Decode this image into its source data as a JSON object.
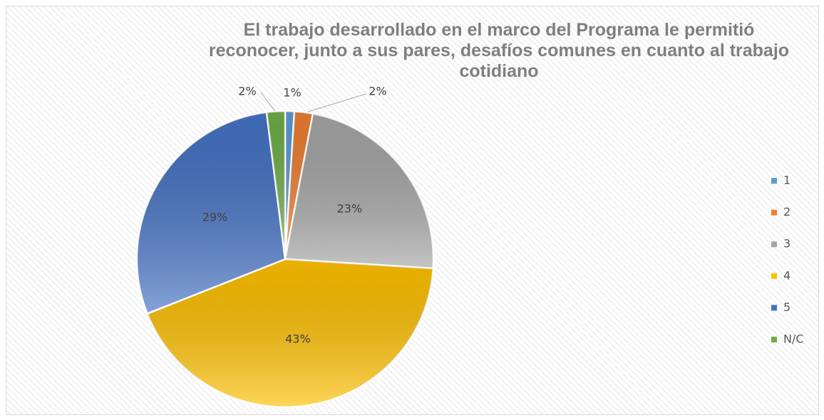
{
  "chart_data": {
    "type": "pie",
    "title": "El trabajo desarrollado en el marco del Programa le permitió reconocer, junto a sus pares, desafíos comunes en cuanto al trabajo cotidiano",
    "categories": [
      "1",
      "2",
      "3",
      "4",
      "5",
      "N/C"
    ],
    "values": [
      1,
      2,
      23,
      43,
      29,
      2
    ],
    "value_labels": [
      "1%",
      "2%",
      "23%",
      "43%",
      "29%",
      "2%"
    ],
    "colors": [
      "#5b9bd5",
      "#ed7d31",
      "#a5a5a5",
      "#ffc000",
      "#4472c4",
      "#70ad47"
    ],
    "legend": "right"
  }
}
